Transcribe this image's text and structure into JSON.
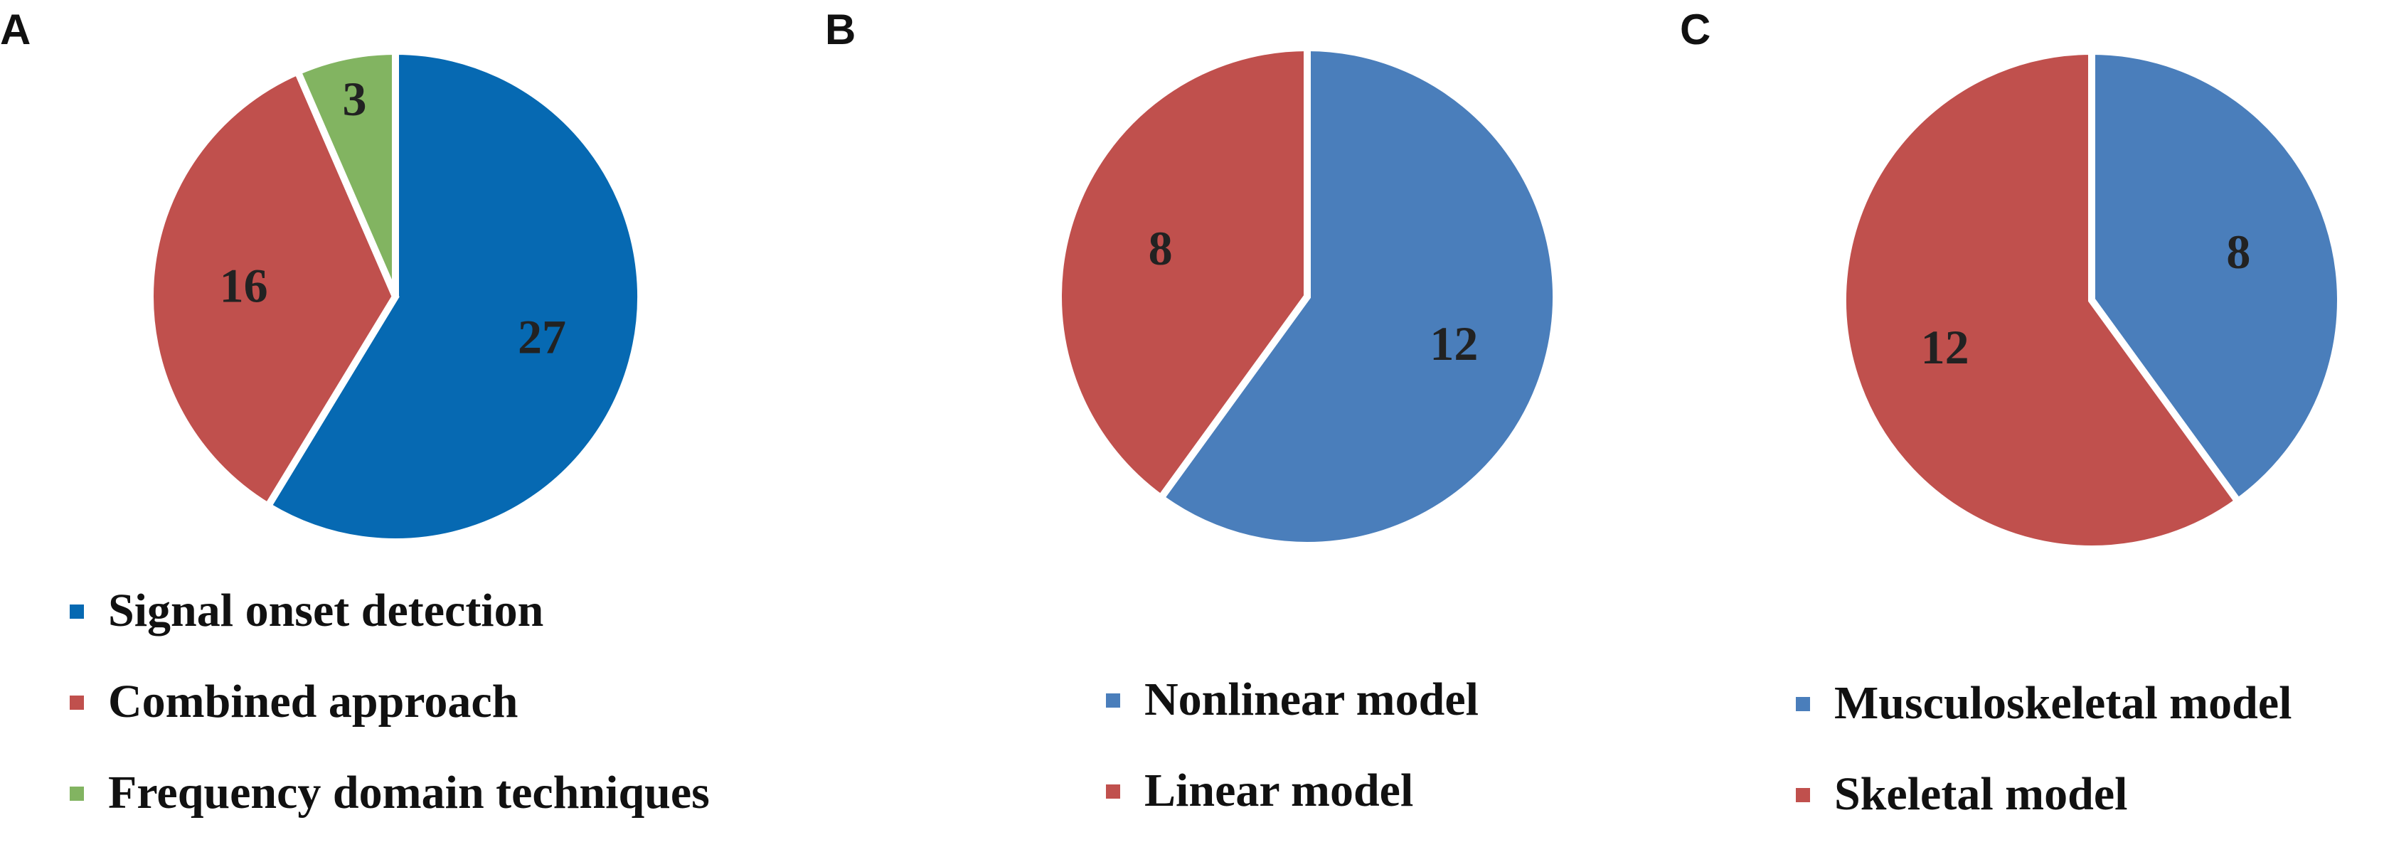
{
  "chart_data": [
    {
      "panel": "A",
      "type": "pie",
      "title": "",
      "categories": [
        "Signal onset detection",
        "Combined approach",
        "Frequency domain techniques"
      ],
      "values": [
        27,
        16,
        3
      ],
      "colors": [
        "#0669b2",
        "#c0504d",
        "#82b461"
      ],
      "legend": [
        "Signal onset detection",
        "Combined approach",
        "Frequency domain techniques"
      ],
      "legend_position": "bottom"
    },
    {
      "panel": "B",
      "type": "pie",
      "title": "",
      "categories": [
        "Nonlinear model",
        "Linear model"
      ],
      "values": [
        12,
        8
      ],
      "colors": [
        "#4a7ebb",
        "#c0504d"
      ],
      "legend": [
        "Nonlinear model",
        "Linear model"
      ],
      "legend_position": "bottom"
    },
    {
      "panel": "C",
      "type": "pie",
      "title": "",
      "categories": [
        "Musculoskeletal model",
        "Skeletal model"
      ],
      "values": [
        8,
        12
      ],
      "colors": [
        "#4a7ebb",
        "#c0504d"
      ],
      "legend": [
        "Musculoskeletal model",
        "Skeletal model"
      ],
      "legend_position": "bottom"
    }
  ]
}
